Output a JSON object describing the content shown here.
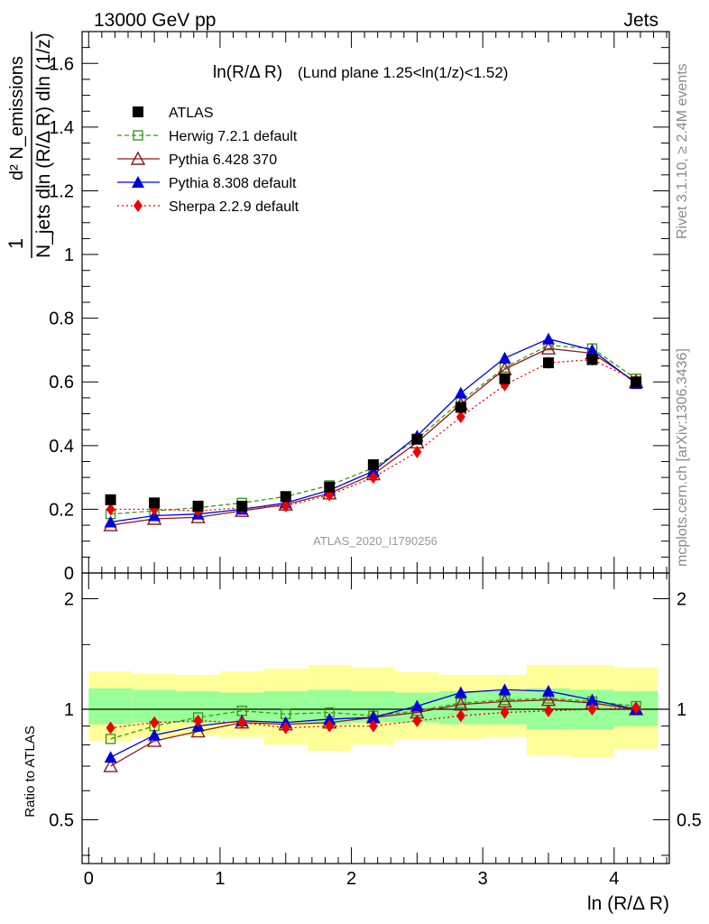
{
  "header": {
    "left": "13000 GeV pp",
    "right": "Jets"
  },
  "side_labels": {
    "rivet": "Rivet 3.1.10, ≥ 2.4M events",
    "mcplots": "mcplots.cern.ch [arXiv:1306.3436]"
  },
  "chart_data": {
    "type": "scatter",
    "title_main": "ln(R/Δ R)",
    "title_sub": "(Lund plane 1.25<ln(1/z)<1.52)",
    "watermark": "ATLAS_2020_I1790256",
    "xlabel": "ln (R/Δ R)",
    "ylabel_main": {
      "numerator": "1",
      "denominator": "N_jets dln (R/Δ R) dln (1/z)",
      "numerator_top": "d² N_emissions"
    },
    "ylabel_ratio": "Ratio to ATLAS",
    "xlim": [
      -0.05,
      4.42
    ],
    "ylim_main": [
      0,
      1.7
    ],
    "ylim_ratio": [
      0.38,
      2.35
    ],
    "x_ticks": [
      0,
      1,
      2,
      3,
      4
    ],
    "y_ticks_main": [
      0,
      0.2,
      0.4,
      0.6,
      0.8,
      1,
      1.2,
      1.4,
      1.6
    ],
    "y_ticks_ratio": [
      0.5,
      1,
      2
    ],
    "legend_position": "top-left",
    "x": [
      0.167,
      0.5,
      0.833,
      1.167,
      1.5,
      1.833,
      2.167,
      2.5,
      2.833,
      3.167,
      3.5,
      3.833,
      4.167
    ],
    "bin_edges": [
      0.0,
      0.333,
      0.667,
      1.0,
      1.333,
      1.667,
      2.0,
      2.333,
      2.667,
      3.0,
      3.333,
      3.667,
      4.0,
      4.333
    ],
    "band_inner": [
      [
        0.91,
        1.14
      ],
      [
        0.92,
        1.13
      ],
      [
        0.92,
        1.12
      ],
      [
        0.93,
        1.11
      ],
      [
        0.92,
        1.12
      ],
      [
        0.91,
        1.13
      ],
      [
        0.92,
        1.12
      ],
      [
        0.92,
        1.11
      ],
      [
        0.91,
        1.12
      ],
      [
        0.91,
        1.12
      ],
      [
        0.88,
        1.14
      ],
      [
        0.88,
        1.13
      ],
      [
        0.9,
        1.12
      ]
    ],
    "band_outer": [
      [
        0.82,
        1.27
      ],
      [
        0.84,
        1.25
      ],
      [
        0.85,
        1.24
      ],
      [
        0.84,
        1.27
      ],
      [
        0.8,
        1.29
      ],
      [
        0.77,
        1.32
      ],
      [
        0.8,
        1.3
      ],
      [
        0.83,
        1.26
      ],
      [
        0.83,
        1.24
      ],
      [
        0.84,
        1.24
      ],
      [
        0.75,
        1.32
      ],
      [
        0.74,
        1.32
      ],
      [
        0.78,
        1.3
      ]
    ],
    "series": [
      {
        "name": "ATLAS",
        "color": "#000000",
        "marker": "square-filled",
        "line": "none",
        "values": [
          0.23,
          0.22,
          0.21,
          0.21,
          0.24,
          0.27,
          0.34,
          0.42,
          0.52,
          0.61,
          0.66,
          0.67,
          0.6
        ],
        "ratio": [
          1.0,
          1.0,
          1.0,
          1.0,
          1.0,
          1.0,
          1.0,
          1.0,
          1.0,
          1.0,
          1.0,
          1.0,
          1.0
        ]
      },
      {
        "name": "Herwig 7.2.1 default",
        "color": "#3a9a1a",
        "marker": "square-open",
        "line": "dashed",
        "values": [
          0.185,
          0.195,
          0.205,
          0.22,
          0.24,
          0.275,
          0.33,
          0.42,
          0.54,
          0.645,
          0.715,
          0.705,
          0.61
        ],
        "ratio": [
          0.83,
          0.9,
          0.95,
          0.99,
          0.97,
          0.98,
          0.96,
          0.99,
          1.04,
          1.06,
          1.07,
          1.05,
          1.02
        ]
      },
      {
        "name": "Pythia 6.428 370",
        "color": "#8b1a1a",
        "marker": "triangle-open",
        "line": "solid",
        "values": [
          0.15,
          0.17,
          0.175,
          0.195,
          0.215,
          0.25,
          0.31,
          0.41,
          0.53,
          0.64,
          0.705,
          0.69,
          0.6
        ],
        "ratio": [
          0.7,
          0.82,
          0.87,
          0.92,
          0.91,
          0.92,
          0.95,
          0.98,
          1.03,
          1.05,
          1.06,
          1.04,
          1.0
        ]
      },
      {
        "name": "Pythia 8.308 default",
        "color": "#0000dd",
        "marker": "triangle-filled",
        "line": "solid",
        "values": [
          0.16,
          0.18,
          0.185,
          0.2,
          0.22,
          0.26,
          0.32,
          0.43,
          0.565,
          0.675,
          0.735,
          0.7,
          0.595
        ],
        "ratio": [
          0.74,
          0.85,
          0.9,
          0.93,
          0.92,
          0.94,
          0.95,
          1.02,
          1.11,
          1.13,
          1.12,
          1.06,
          1.0
        ]
      },
      {
        "name": "Sherpa 2.2.9 default",
        "color": "#ee0000",
        "marker": "diamond-filled",
        "line": "dotted",
        "values": [
          0.2,
          0.2,
          0.195,
          0.205,
          0.21,
          0.245,
          0.3,
          0.38,
          0.49,
          0.59,
          0.66,
          0.67,
          0.605
        ],
        "ratio": [
          0.89,
          0.92,
          0.93,
          0.92,
          0.89,
          0.9,
          0.9,
          0.93,
          0.96,
          0.98,
          0.99,
          1.0,
          1.01
        ]
      }
    ]
  }
}
